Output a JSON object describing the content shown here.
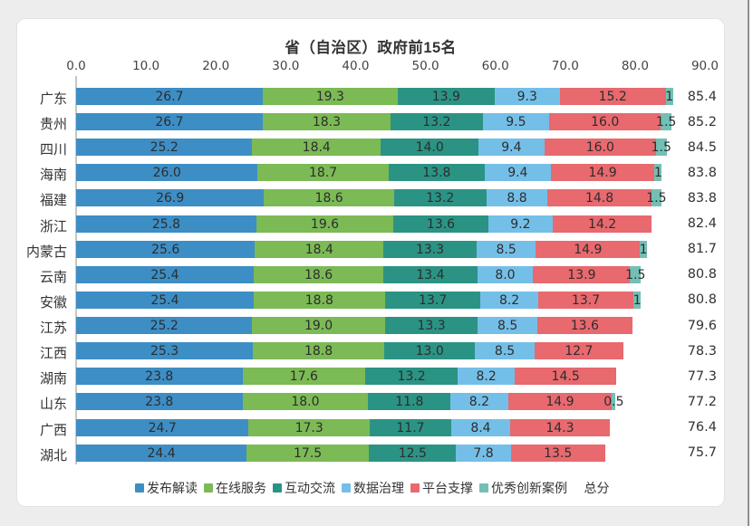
{
  "chart_data": {
    "type": "bar",
    "variant": "horizontal-stacked",
    "title": "省（自治区）政府前15名",
    "xlim": [
      0,
      90
    ],
    "x_tick_labels": [
      "0.0",
      "10.0",
      "20.0",
      "30.0",
      "40.0",
      "50.0",
      "60.0",
      "70.0",
      "80.0",
      "90.0"
    ],
    "legend_position": "bottom",
    "series": [
      {
        "name": "发布解读",
        "color": "#3D8EC5"
      },
      {
        "name": "在线服务",
        "color": "#7CBA55"
      },
      {
        "name": "互动交流",
        "color": "#2B9384"
      },
      {
        "name": "数据治理",
        "color": "#74BFE8"
      },
      {
        "name": "平台支撑",
        "color": "#E8696E"
      },
      {
        "name": "优秀创新案例",
        "color": "#74BFB5"
      }
    ],
    "legend_extra": "总分",
    "rows": [
      {
        "name": "广东",
        "values": [
          26.7,
          19.3,
          13.9,
          9.3,
          15.2,
          1
        ],
        "labels": [
          "26.7",
          "19.3",
          "13.9",
          "9.3",
          "15.2",
          "1"
        ],
        "total": "85.4"
      },
      {
        "name": "贵州",
        "values": [
          26.7,
          18.3,
          13.2,
          9.5,
          16.0,
          1.5
        ],
        "labels": [
          "26.7",
          "18.3",
          "13.2",
          "9.5",
          "16.0",
          "1.5"
        ],
        "total": "85.2"
      },
      {
        "name": "四川",
        "values": [
          25.2,
          18.4,
          14.0,
          9.4,
          16.0,
          1.5
        ],
        "labels": [
          "25.2",
          "18.4",
          "14.0",
          "9.4",
          "16.0",
          "1.5"
        ],
        "total": "84.5"
      },
      {
        "name": "海南",
        "values": [
          26.0,
          18.7,
          13.8,
          9.4,
          14.9,
          1
        ],
        "labels": [
          "26.0",
          "18.7",
          "13.8",
          "9.4",
          "14.9",
          "1"
        ],
        "total": "83.8"
      },
      {
        "name": "福建",
        "values": [
          26.9,
          18.6,
          13.2,
          8.8,
          14.8,
          1.5
        ],
        "labels": [
          "26.9",
          "18.6",
          "13.2",
          "8.8",
          "14.8",
          "1.5"
        ],
        "total": "83.8"
      },
      {
        "name": "浙江",
        "values": [
          25.8,
          19.6,
          13.6,
          9.2,
          14.2
        ],
        "labels": [
          "25.8",
          "19.6",
          "13.6",
          "9.2",
          "14.2"
        ],
        "total": "82.4"
      },
      {
        "name": "内蒙古",
        "values": [
          25.6,
          18.4,
          13.3,
          8.5,
          14.9,
          1
        ],
        "labels": [
          "25.6",
          "18.4",
          "13.3",
          "8.5",
          "14.9",
          "1"
        ],
        "total": "81.7"
      },
      {
        "name": "云南",
        "values": [
          25.4,
          18.6,
          13.4,
          8.0,
          13.9,
          1.5
        ],
        "labels": [
          "25.4",
          "18.6",
          "13.4",
          "8.0",
          "13.9",
          "1.5"
        ],
        "total": "80.8"
      },
      {
        "name": "安徽",
        "values": [
          25.4,
          18.8,
          13.7,
          8.2,
          13.7,
          1
        ],
        "labels": [
          "25.4",
          "18.8",
          "13.7",
          "8.2",
          "13.7",
          "1"
        ],
        "total": "80.8"
      },
      {
        "name": "江苏",
        "values": [
          25.2,
          19.0,
          13.3,
          8.5,
          13.6
        ],
        "labels": [
          "25.2",
          "19.0",
          "13.3",
          "8.5",
          "13.6"
        ],
        "total": "79.6"
      },
      {
        "name": "江西",
        "values": [
          25.3,
          18.8,
          13.0,
          8.5,
          12.7
        ],
        "labels": [
          "25.3",
          "18.8",
          "13.0",
          "8.5",
          "12.7"
        ],
        "total": "78.3"
      },
      {
        "name": "湖南",
        "values": [
          23.8,
          17.6,
          13.2,
          8.2,
          14.5
        ],
        "labels": [
          "23.8",
          "17.6",
          "13.2",
          "8.2",
          "14.5"
        ],
        "total": "77.3"
      },
      {
        "name": "山东",
        "values": [
          23.8,
          18.0,
          11.8,
          8.2,
          14.9,
          0.5
        ],
        "labels": [
          "23.8",
          "18.0",
          "11.8",
          "8.2",
          "14.9",
          "0.5"
        ],
        "total": "77.2"
      },
      {
        "name": "广西",
        "values": [
          24.7,
          17.3,
          11.7,
          8.4,
          14.3
        ],
        "labels": [
          "24.7",
          "17.3",
          "11.7",
          "8.4",
          "14.3"
        ],
        "total": "76.4"
      },
      {
        "name": "湖北",
        "values": [
          24.4,
          17.5,
          12.5,
          7.8,
          13.5
        ],
        "labels": [
          "24.4",
          "17.5",
          "12.5",
          "7.8",
          "13.5"
        ],
        "total": "75.7"
      }
    ]
  }
}
